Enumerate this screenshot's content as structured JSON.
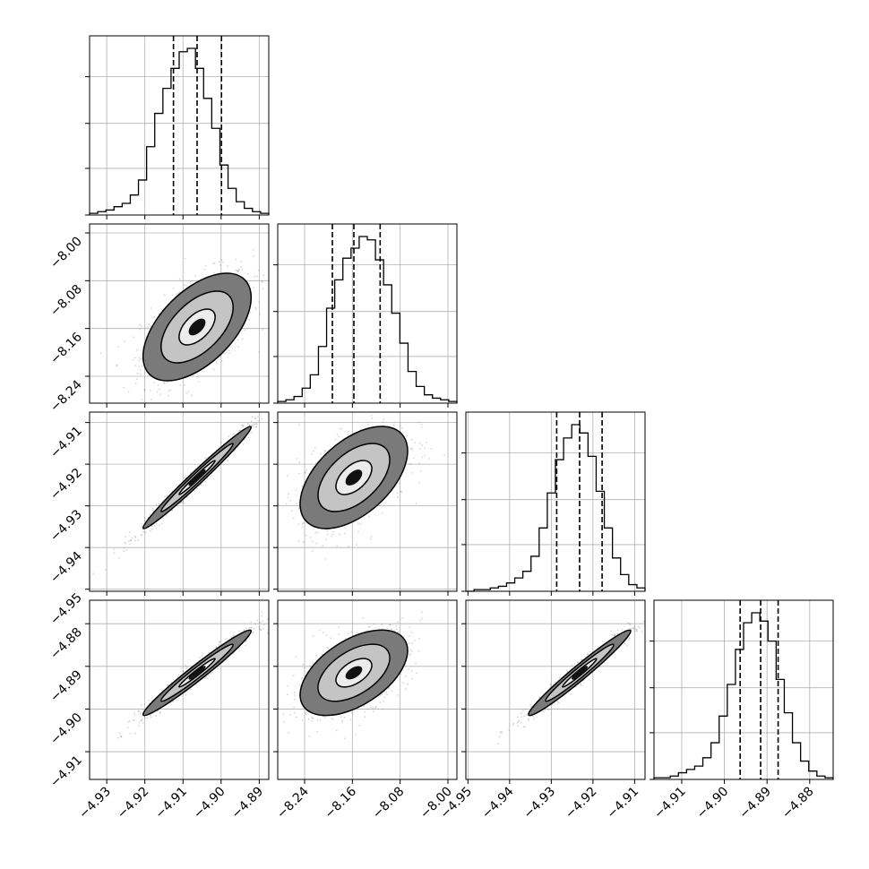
{
  "chart_data": {
    "type": "corner",
    "title": "",
    "grid": true,
    "params": [
      {
        "name": "",
        "ticks": [
          "−4.93",
          "−4.92",
          "−4.91",
          "−4.90",
          "−4.89"
        ],
        "tick_values": [
          -4.93,
          -4.92,
          -4.91,
          -4.9,
          -4.89
        ],
        "range": [
          -4.9345,
          -4.8875
        ],
        "quantiles": [
          -4.9125,
          -4.9063,
          -4.8999
        ]
      },
      {
        "name": "",
        "ticks": [
          "−8.24",
          "−8.16",
          "−8.08",
          "−8.00"
        ],
        "tick_values": [
          -8.24,
          -8.16,
          -8.08,
          -8.0
        ],
        "range": [
          -8.285,
          -7.985
        ],
        "quantiles": [
          -8.1935,
          -8.1575,
          -8.1135
        ]
      },
      {
        "name": "",
        "ticks": [
          "−4.95",
          "−4.94",
          "−4.93",
          "−4.92",
          "−4.91"
        ],
        "tick_values": [
          -4.95,
          -4.94,
          -4.93,
          -4.92,
          -4.91
        ],
        "range": [
          -4.9505,
          -4.9075
        ],
        "quantiles": [
          -4.9287,
          -4.9232,
          -4.9178
        ]
      },
      {
        "name": "",
        "ticks": [
          "−4.91",
          "−4.90",
          "−4.89",
          "−4.88"
        ],
        "tick_values": [
          -4.91,
          -4.9,
          -4.89,
          -4.88
        ],
        "range": [
          -4.9165,
          -4.8745
        ],
        "quantiles": [
          -4.8963,
          -4.8915,
          -4.8874
        ]
      }
    ],
    "histograms": [
      [
        0.01,
        0.02,
        0.03,
        0.05,
        0.07,
        0.12,
        0.21,
        0.41,
        0.61,
        0.76,
        0.88,
        0.98,
        1.0,
        0.88,
        0.7,
        0.52,
        0.3,
        0.16,
        0.08,
        0.04,
        0.02,
        0.01
      ],
      [
        0.01,
        0.02,
        0.04,
        0.09,
        0.17,
        0.34,
        0.57,
        0.74,
        0.87,
        0.93,
        1.0,
        0.98,
        0.86,
        0.71,
        0.54,
        0.36,
        0.19,
        0.1,
        0.05,
        0.03,
        0.02,
        0.01
      ],
      [
        0.0,
        0.01,
        0.01,
        0.02,
        0.03,
        0.05,
        0.08,
        0.12,
        0.21,
        0.38,
        0.59,
        0.79,
        0.92,
        1.0,
        0.95,
        0.81,
        0.6,
        0.38,
        0.2,
        0.1,
        0.04,
        0.02
      ],
      [
        0.01,
        0.01,
        0.02,
        0.04,
        0.06,
        0.08,
        0.13,
        0.22,
        0.38,
        0.57,
        0.78,
        0.94,
        1.0,
        0.95,
        0.83,
        0.6,
        0.4,
        0.22,
        0.11,
        0.05,
        0.02,
        0.01
      ]
    ],
    "correlations": [
      [
        1,
        0.55,
        0.985,
        0.975
      ],
      [
        0.55,
        1,
        0.52,
        0.52
      ],
      [
        0.985,
        0.52,
        1,
        0.975
      ],
      [
        0.975,
        0.52,
        0.975,
        1
      ]
    ],
    "contour_levels": [
      0.5,
      1.0,
      1.5
    ]
  }
}
